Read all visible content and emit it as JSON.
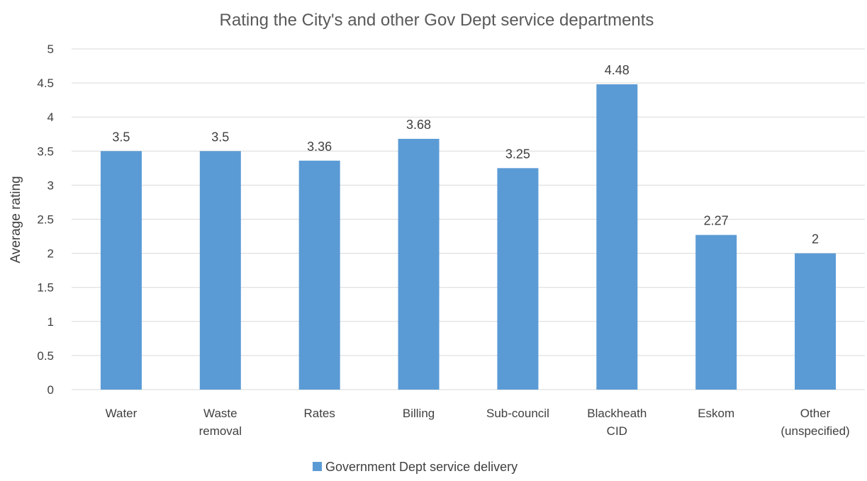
{
  "chart_data": {
    "type": "bar",
    "title": "Rating the City's and other Gov Dept service departments",
    "xlabel": "",
    "ylabel": "Average rating",
    "ylim": [
      0,
      5
    ],
    "yticks": [
      "0",
      "0.5",
      "1",
      "1.5",
      "2",
      "2.5",
      "3",
      "3.5",
      "4",
      "4.5",
      "5"
    ],
    "grid": true,
    "legend_position": "bottom",
    "categories": [
      [
        "Water"
      ],
      [
        "Waste",
        "removal"
      ],
      [
        "Rates"
      ],
      [
        "Billing"
      ],
      [
        "Sub-council"
      ],
      [
        "Blackheath",
        "CID"
      ],
      [
        "Eskom"
      ],
      [
        "Other",
        "(unspecified)"
      ]
    ],
    "series": [
      {
        "name": "Government Dept service delivery",
        "color": "#5b9bd5",
        "values": [
          3.5,
          3.5,
          3.36,
          3.68,
          3.25,
          4.48,
          2.27,
          2
        ],
        "labels": [
          "3.5",
          "3.5",
          "3.36",
          "3.68",
          "3.25",
          "4.48",
          "2.27",
          "2"
        ]
      }
    ]
  }
}
